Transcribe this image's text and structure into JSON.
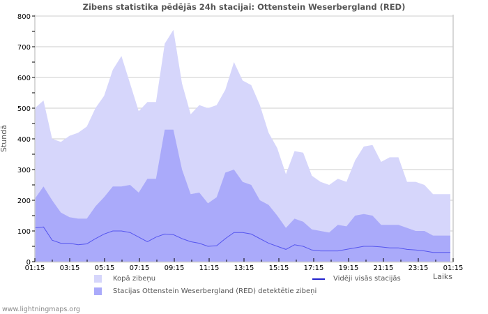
{
  "chart_data": {
    "type": "area",
    "title": "Zibens statistika pēdējās 24h stacijai: Ottenstein Weserbergland (RED)",
    "xlabel": "Laiks",
    "ylabel": "Stundā",
    "ylim": [
      0,
      800
    ],
    "yticks": [
      0,
      100,
      200,
      300,
      400,
      500,
      600,
      700,
      800
    ],
    "xtick_labels": [
      "01:15",
      "03:15",
      "05:15",
      "07:15",
      "09:15",
      "11:15",
      "13:15",
      "15:15",
      "17:15",
      "19:15",
      "21:15",
      "23:15",
      "01:15"
    ],
    "grid": true,
    "legend_position": "bottom",
    "x": [
      "01:15",
      "01:45",
      "02:15",
      "02:45",
      "03:15",
      "03:45",
      "04:15",
      "04:45",
      "05:15",
      "05:45",
      "06:15",
      "06:45",
      "07:15",
      "07:45",
      "08:15",
      "08:45",
      "09:15",
      "09:45",
      "10:15",
      "10:45",
      "11:15",
      "11:45",
      "12:15",
      "12:45",
      "13:15",
      "13:45",
      "14:15",
      "14:45",
      "15:15",
      "15:45",
      "16:15",
      "16:45",
      "17:15",
      "17:45",
      "18:15",
      "18:45",
      "19:15",
      "19:45",
      "20:15",
      "20:45",
      "21:15",
      "21:45",
      "22:15",
      "22:45",
      "23:15",
      "23:45",
      "00:15",
      "00:45",
      "01:15"
    ],
    "series": [
      {
        "name": "Kopā zibeņu",
        "type": "area",
        "color": "#d6d6fb",
        "values": [
          500,
          525,
          400,
          390,
          410,
          420,
          440,
          500,
          540,
          625,
          670,
          580,
          490,
          520,
          520,
          710,
          755,
          580,
          480,
          510,
          500,
          510,
          560,
          650,
          590,
          575,
          510,
          420,
          370,
          285,
          360,
          355,
          280,
          260,
          250,
          270,
          260,
          330,
          375,
          380,
          325,
          340,
          340,
          260,
          260,
          250,
          220,
          220,
          220
        ]
      },
      {
        "name": "Stacijas Ottenstein Weserbergland (RED) detektētie zibeņi",
        "type": "area",
        "color": "#aaaafa",
        "values": [
          205,
          245,
          200,
          160,
          145,
          140,
          140,
          180,
          210,
          245,
          245,
          250,
          225,
          270,
          270,
          430,
          430,
          300,
          220,
          225,
          190,
          210,
          290,
          300,
          260,
          250,
          200,
          185,
          150,
          110,
          140,
          130,
          105,
          100,
          95,
          120,
          115,
          150,
          155,
          150,
          120,
          120,
          120,
          110,
          100,
          100,
          85,
          85,
          85
        ]
      },
      {
        "name": "Vidēji visās stacijās",
        "type": "line",
        "color": "#2222cc",
        "values": [
          110,
          113,
          70,
          60,
          60,
          55,
          58,
          75,
          90,
          100,
          100,
          95,
          80,
          65,
          80,
          90,
          88,
          75,
          65,
          60,
          50,
          52,
          75,
          95,
          95,
          90,
          75,
          60,
          50,
          40,
          55,
          50,
          38,
          35,
          35,
          35,
          40,
          45,
          50,
          50,
          48,
          45,
          45,
          40,
          38,
          35,
          30,
          30,
          30
        ]
      }
    ]
  },
  "legend": {
    "total_label": "Kopā zibeņu",
    "station_label": "Stacijas Ottenstein Weserbergland (RED) detektētie zibeņi",
    "avg_label": "Vidēji visās stacijās"
  },
  "footer": "www.lightningmaps.org"
}
